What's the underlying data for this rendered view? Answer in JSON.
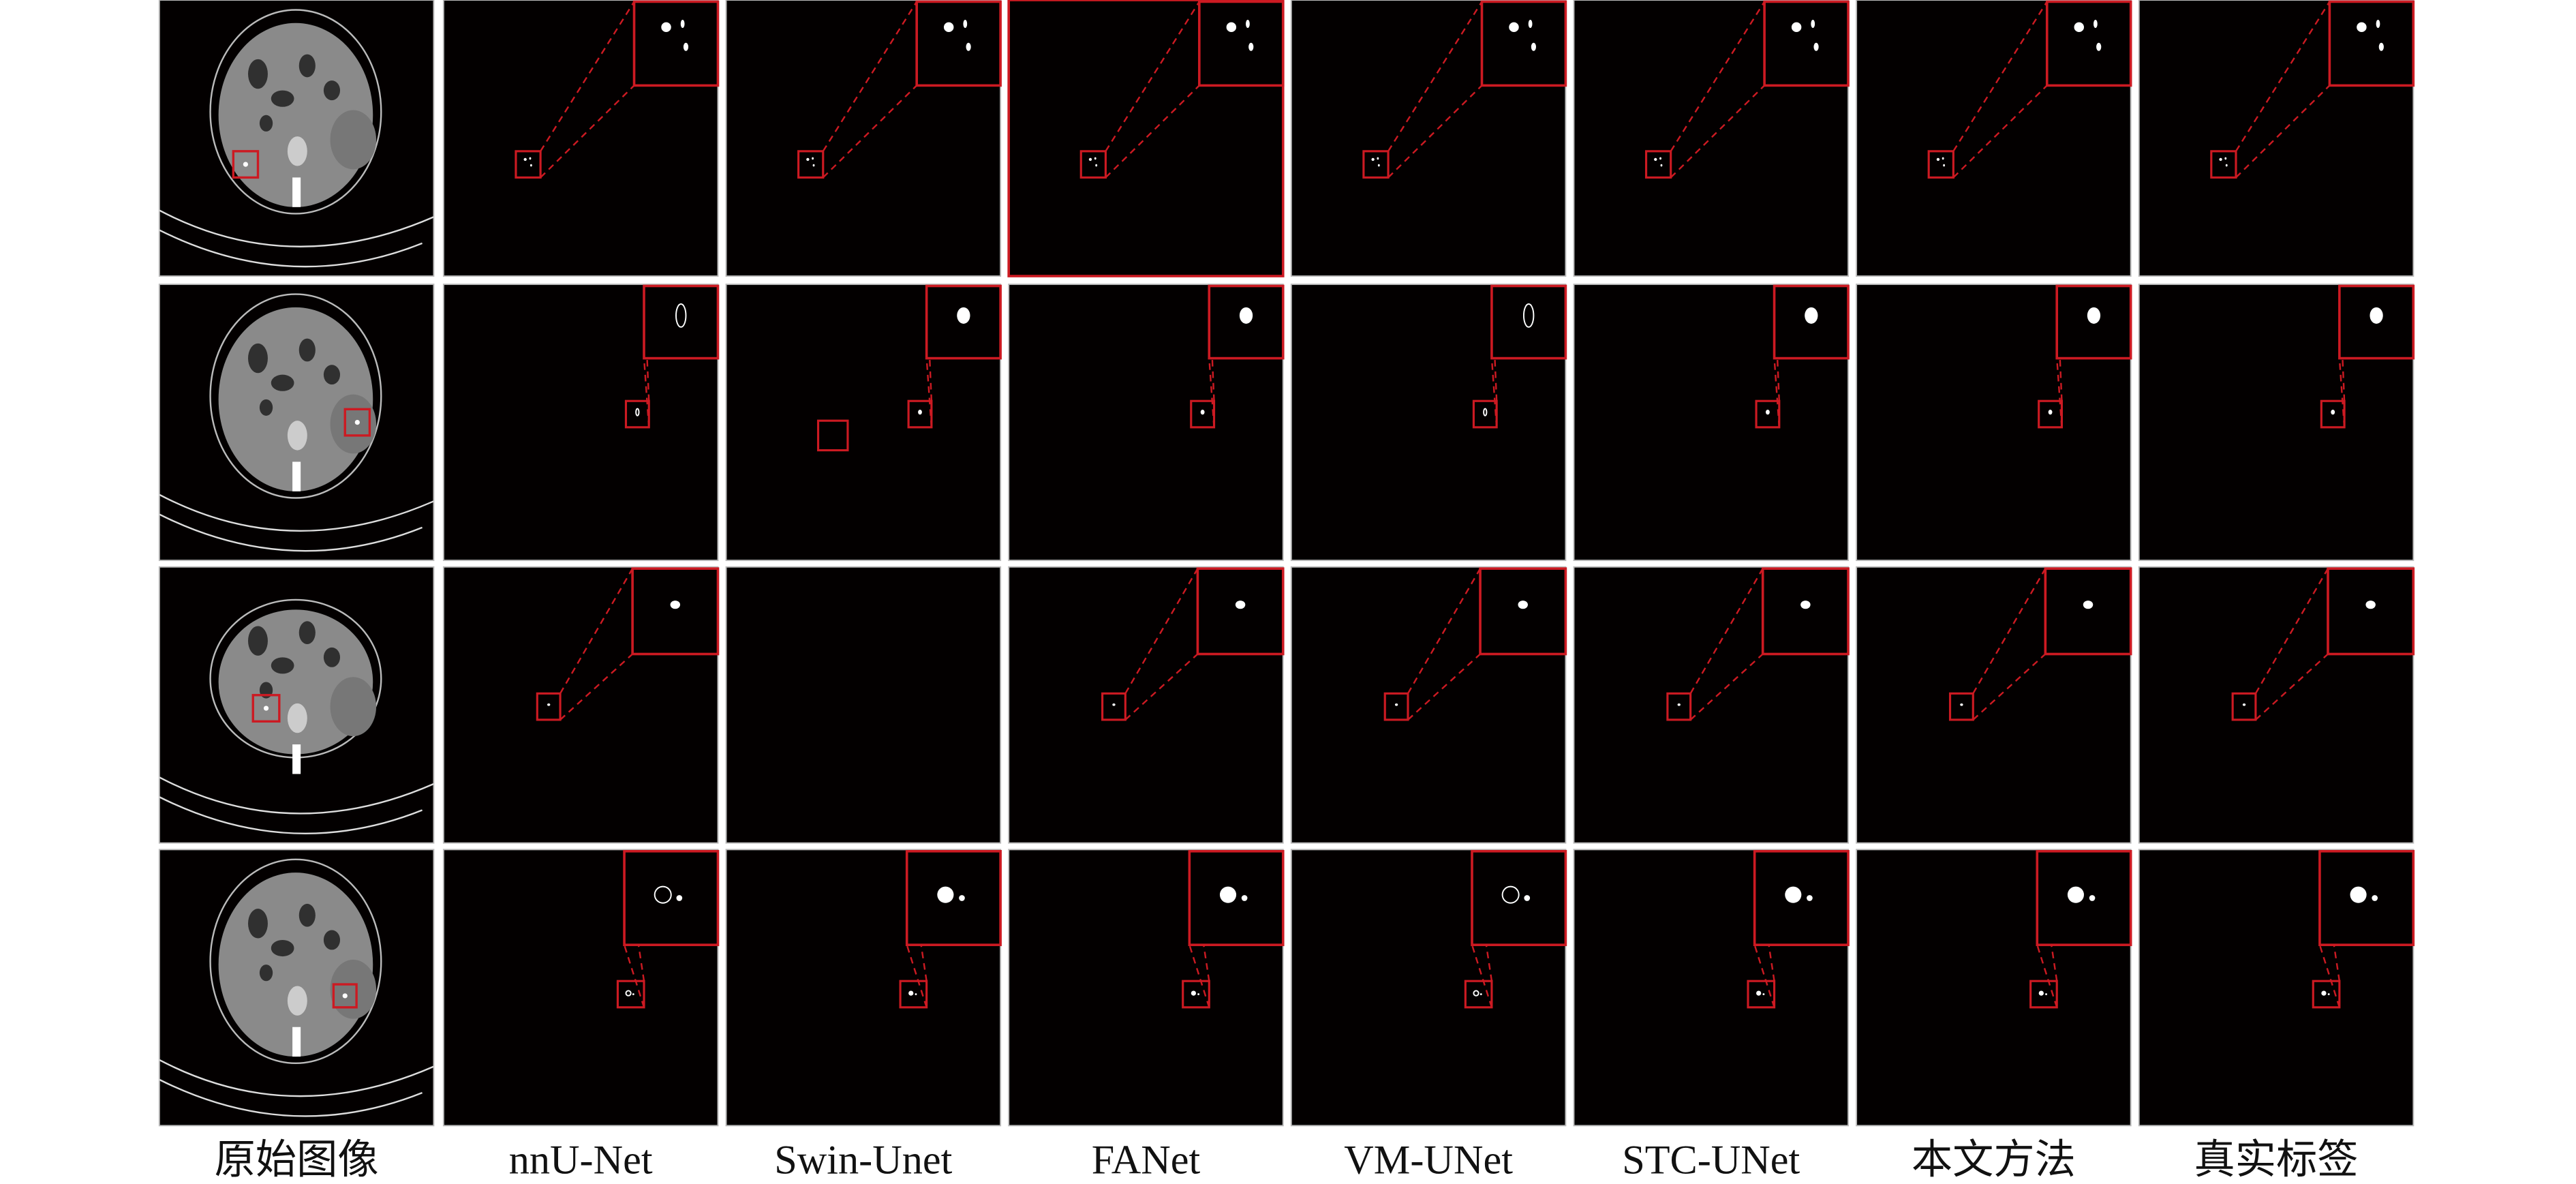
{
  "figure": {
    "columns": [
      {
        "label": "原始图像",
        "kind": "ct"
      },
      {
        "label": "nnU-Net",
        "kind": "mask"
      },
      {
        "label": "Swin-Unet",
        "kind": "mask"
      },
      {
        "label": "FANet",
        "kind": "mask"
      },
      {
        "label": "VM-UNet",
        "kind": "mask"
      },
      {
        "label": "STC-UNet",
        "kind": "mask"
      },
      {
        "label": "本文方法",
        "kind": "mask"
      },
      {
        "label": "真实标签",
        "kind": "mask"
      }
    ],
    "rows": 4,
    "colors": {
      "panel": "#030000",
      "highlight": "#cc1a22",
      "mask": "#ffffff",
      "tissue": "#8a8a8a"
    }
  }
}
